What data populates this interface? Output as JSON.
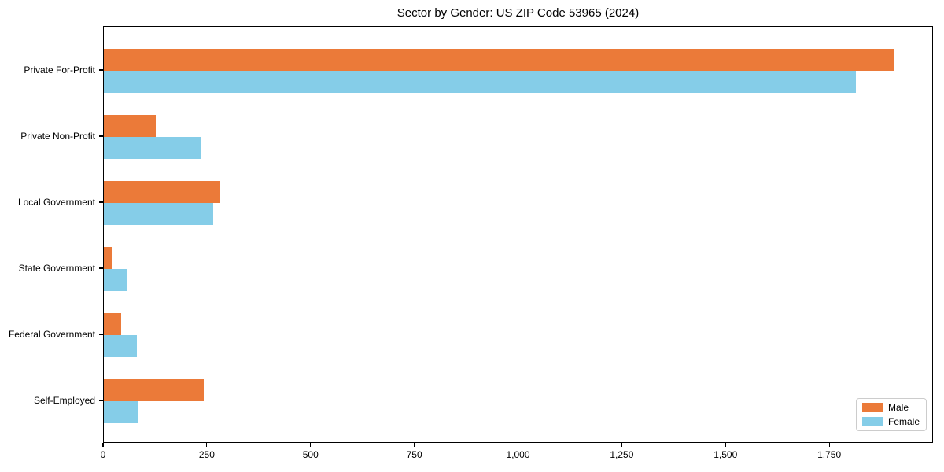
{
  "colors": {
    "male": "#EB7A39",
    "female": "#85CDE8",
    "axis": "#000000",
    "legend_border": "#cccccc",
    "background": "#ffffff"
  },
  "chart_data": {
    "type": "bar",
    "orientation": "horizontal",
    "title": "Sector by Gender: US ZIP Code 53965 (2024)",
    "xlabel": "",
    "ylabel": "",
    "categories": [
      "Private For-Profit",
      "Private Non-Profit",
      "Local Government",
      "State Government",
      "Federal Government",
      "Self-Employed"
    ],
    "series": [
      {
        "name": "Male",
        "color": "#EB7A39",
        "values": [
          1905,
          125,
          281,
          21,
          42,
          241
        ]
      },
      {
        "name": "Female",
        "color": "#85CDE8",
        "values": [
          1812,
          235,
          264,
          57,
          80,
          84
        ]
      }
    ],
    "xlim": [
      0,
      2000
    ],
    "xticks": [
      0,
      250,
      500,
      750,
      1000,
      1250,
      1500,
      1750
    ],
    "xtick_labels": [
      "0",
      "250",
      "500",
      "750",
      "1,000",
      "1,250",
      "1,500",
      "1,750"
    ],
    "grid": false,
    "legend_position": "lower right"
  }
}
